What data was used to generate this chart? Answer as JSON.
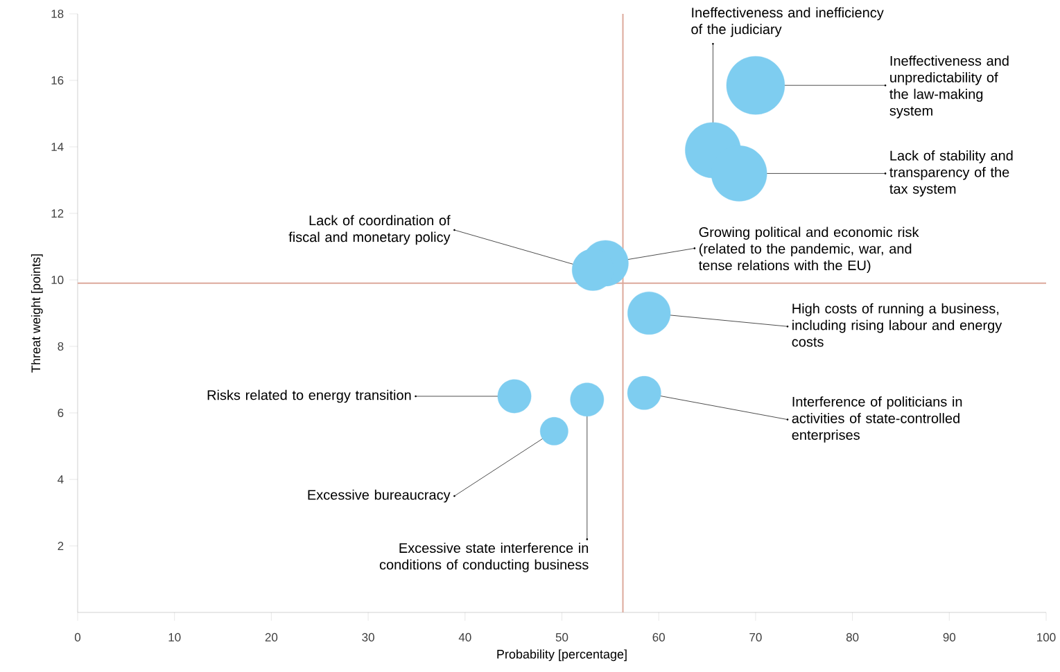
{
  "chart_data": {
    "type": "bubble",
    "xlabel": "Probability [percentage]",
    "ylabel": "Threat weight [points]",
    "x": [
      70.0,
      65.6,
      68.3,
      54.5,
      53.2,
      59.0,
      58.5,
      45.1,
      52.6,
      49.2
    ],
    "values": [
      15.85,
      13.9,
      13.2,
      10.5,
      10.3,
      9.0,
      6.6,
      6.5,
      6.4,
      5.45
    ],
    "sizes": [
      1,
      0.91,
      0.91,
      0.62,
      0.51,
      0.54,
      0.33,
      0.33,
      0.33,
      0.23
    ],
    "color": "#7ecdf0",
    "marker": "circle",
    "xlim": [
      0,
      100
    ],
    "ylim": [
      0,
      18
    ],
    "xticks": [
      0,
      10,
      20,
      30,
      40,
      50,
      60,
      70,
      80,
      90,
      100
    ],
    "yticks": [
      2,
      4,
      6,
      8,
      10,
      12,
      14,
      16,
      18
    ],
    "ref_lines": [
      {
        "axis": "x",
        "value": 56.3,
        "color": "#dca99b"
      },
      {
        "axis": "y",
        "value": 9.9,
        "color": "#dca99b"
      }
    ],
    "annotations": [
      {
        "text": "Ineffectiveness and unpredictability of the law-making system",
        "x": 70.0,
        "y": 15.85
      },
      {
        "text": "Ineffectiveness and inefficiency of the judiciary",
        "x": 65.6,
        "y": 13.9
      },
      {
        "text": "Lack of stability and transparency of the tax system",
        "x": 68.3,
        "y": 13.2
      },
      {
        "text": "Growing political and economic risk (related to the pandemic, war, and tense relations with the EU)",
        "x": 54.5,
        "y": 10.5
      },
      {
        "text": "Lack of coordination of fiscal and monetary policy",
        "x": 53.2,
        "y": 10.3
      },
      {
        "text": "High costs of running a business, including rising labour and energy costs",
        "x": 59.0,
        "y": 9.0
      },
      {
        "text": "Interference of politicians in activities of state-controlled enterprises",
        "x": 58.5,
        "y": 6.6
      },
      {
        "text": "Risks related to energy transition",
        "x": 45.1,
        "y": 6.5
      },
      {
        "text": "Excessive state interference in conditions of conducting business",
        "x": 52.6,
        "y": 6.4
      },
      {
        "text": "Excessive bureaucracy",
        "x": 49.2,
        "y": 5.45
      }
    ]
  }
}
